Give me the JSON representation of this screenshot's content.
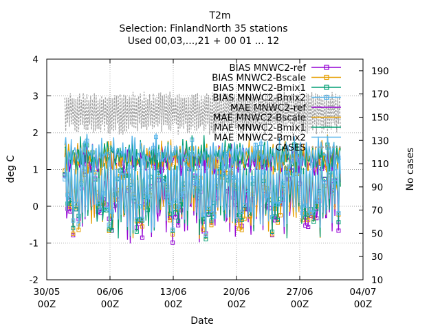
{
  "chart_data": {
    "type": "line",
    "title": "T2m",
    "subtitle_lines": [
      "Selection: FinlandNorth      35 stations",
      "Used 00,03,...,21 + 00 01 ... 12"
    ],
    "xlabel": "Date",
    "ylabel": "deg C",
    "y2label": "No cases",
    "x_tick_labels": [
      {
        "line1": "30/05",
        "line2": "00Z",
        "day": 0
      },
      {
        "line1": "06/06",
        "line2": "00Z",
        "day": 7
      },
      {
        "line1": "13/06",
        "line2": "00Z",
        "day": 14
      },
      {
        "line1": "20/06",
        "line2": "00Z",
        "day": 21
      },
      {
        "line1": "27/06",
        "line2": "00Z",
        "day": 28
      },
      {
        "line1": "04/07",
        "line2": "00Z",
        "day": 35
      }
    ],
    "xlim_days": [
      0,
      35
    ],
    "data_day_range": [
      2,
      32.5
    ],
    "ylim": [
      -2,
      4
    ],
    "yticks": [
      -2,
      -1,
      0,
      1,
      2,
      3,
      4
    ],
    "y2lim": [
      10,
      200
    ],
    "y2ticks": [
      10,
      30,
      50,
      70,
      90,
      110,
      130,
      150,
      170,
      190
    ],
    "grid": true,
    "legend_placement": "top-right",
    "series": [
      {
        "name": "BIAS MNWC2-ref",
        "color": "#9400d3",
        "marker": "square",
        "kind": "bias"
      },
      {
        "name": "BIAS MNWC2-Bscale",
        "color": "#e69f00",
        "marker": "square",
        "kind": "bias"
      },
      {
        "name": "BIAS MNWC2-Bmix1",
        "color": "#009e73",
        "marker": "square",
        "kind": "bias"
      },
      {
        "name": "BIAS MNWC2-Bmix2",
        "color": "#56b4e9",
        "marker": "square",
        "kind": "bias"
      },
      {
        "name": "MAE MNWC2-ref",
        "color": "#9400d3",
        "marker": "none",
        "kind": "mae"
      },
      {
        "name": "MAE MNWC2-Bscale",
        "color": "#e69f00",
        "marker": "none",
        "kind": "mae"
      },
      {
        "name": "MAE MNWC2-Bmix1",
        "color": "#009e73",
        "marker": "none",
        "kind": "mae"
      },
      {
        "name": "MAE MNWC2-Bmix2",
        "color": "#56b4e9",
        "marker": "none",
        "kind": "mae"
      },
      {
        "name": "CASES",
        "color": "#a0a0a0",
        "marker": "none",
        "kind": "cases",
        "axis": "y2"
      }
    ]
  }
}
